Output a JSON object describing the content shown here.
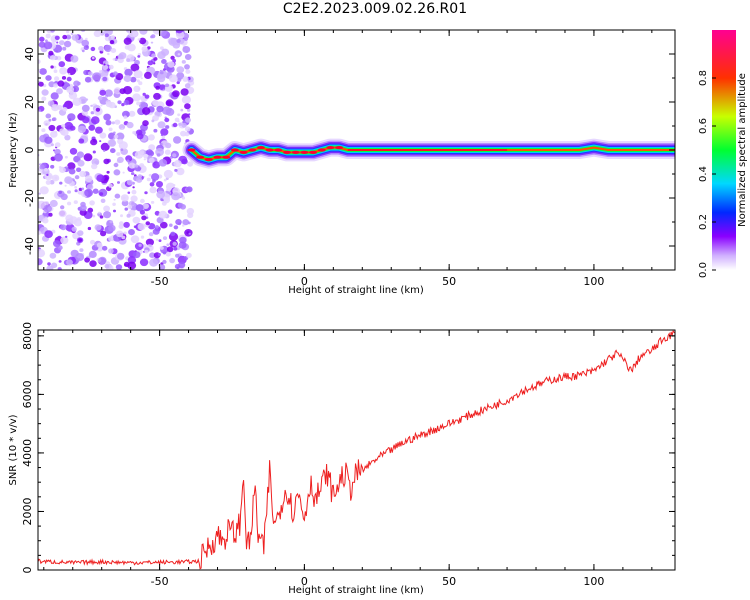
{
  "title": "C2E2.2023.009.02.26.R01",
  "chart_data": [
    {
      "type": "heatmap",
      "name": "spectrogram",
      "xlabel": "Height of straight line (km)",
      "ylabel": "Frequency (Hz)",
      "xlim": [
        -92,
        128
      ],
      "ylim": [
        -50,
        50
      ],
      "xticks": [
        -50,
        0,
        50,
        100
      ],
      "yticks": [
        -40,
        -20,
        0,
        20,
        40
      ],
      "noise_region_x": [
        -92,
        -39
      ],
      "ridge": {
        "x": [
          -39,
          -36,
          -33,
          -30,
          -27,
          -24,
          -21,
          -18,
          -15,
          -12,
          -9,
          -6,
          -3,
          0,
          3,
          6,
          9,
          12,
          15,
          20,
          40,
          60,
          80,
          95,
          100,
          105,
          110,
          128
        ],
        "freq": [
          0,
          -3,
          -4,
          -3,
          -3,
          0,
          -1,
          0,
          1,
          0,
          0,
          -1,
          -1,
          -1,
          -1,
          0,
          1,
          1,
          0,
          0,
          0,
          0,
          0,
          0,
          1,
          0,
          0,
          0
        ]
      },
      "colorbar": {
        "label": "Normalized spectral amplitude",
        "range": [
          0,
          1
        ],
        "ticks": [
          "0.0",
          "0.2",
          "0.4",
          "0.6",
          "0.8"
        ],
        "colors": [
          "#ffffff",
          "#8a00ff",
          "#0028ff",
          "#00d8ff",
          "#00ff30",
          "#c8ff00",
          "#ff3000",
          "#ff0090"
        ]
      }
    },
    {
      "type": "line",
      "name": "snr",
      "xlabel": "Height of straight line (km)",
      "ylabel": "SNR (10 * v/v)",
      "xlim": [
        -92,
        128
      ],
      "ylim": [
        0,
        8200
      ],
      "xticks": [
        -50,
        0,
        50,
        100
      ],
      "yticks": [
        0,
        2000,
        4000,
        6000,
        8000
      ],
      "color": "#ee2020",
      "series": [
        {
          "name": "SNR",
          "x": [
            -92,
            -80,
            -70,
            -60,
            -50,
            -40,
            -36,
            -34,
            -32,
            -30,
            -28,
            -26,
            -24,
            -22,
            -21,
            -20,
            -19,
            -18,
            -17,
            -16,
            -14,
            -12,
            -11,
            -10,
            -8,
            -6,
            -4,
            -2,
            0,
            2,
            4,
            6,
            8,
            10,
            12,
            14,
            16,
            18,
            20,
            25,
            30,
            35,
            40,
            45,
            50,
            55,
            60,
            65,
            70,
            75,
            80,
            85,
            90,
            95,
            100,
            105,
            108,
            110,
            113,
            116,
            120,
            124,
            128
          ],
          "y": [
            300,
            250,
            280,
            250,
            260,
            280,
            300,
            700,
            900,
            1200,
            1000,
            1400,
            1200,
            1700,
            3300,
            1000,
            800,
            1800,
            2800,
            1200,
            700,
            3400,
            2000,
            1500,
            2300,
            2800,
            2000,
            2600,
            1800,
            3000,
            2400,
            2900,
            3300,
            2500,
            3000,
            3300,
            2800,
            3300,
            3400,
            3800,
            4100,
            4400,
            4600,
            4800,
            5000,
            5200,
            5400,
            5600,
            5800,
            6100,
            6300,
            6500,
            6600,
            6650,
            6800,
            7200,
            7400,
            7200,
            6800,
            7300,
            7500,
            7900,
            8100
          ]
        }
      ]
    }
  ]
}
